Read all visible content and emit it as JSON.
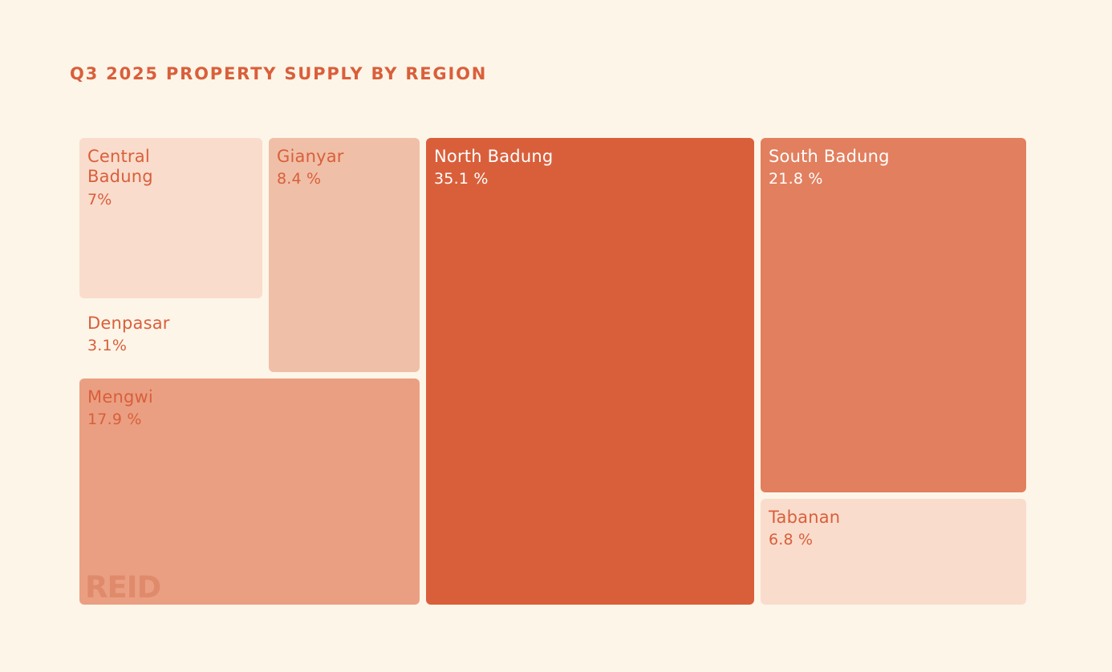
{
  "chart_data": {
    "type": "treemap",
    "title": "Q3 2025 PROPERTY SUPPLY BY REGION",
    "unit": "%",
    "items": [
      {
        "name": "Central Badung",
        "value": 7,
        "value_label": "7%",
        "color": "#f9dccc",
        "text_color": "#d95f3b"
      },
      {
        "name": "Gianyar",
        "value": 8.4,
        "value_label": "8.4 %",
        "color": "#f0bfa7",
        "text_color": "#d95f3b"
      },
      {
        "name": "North Badung",
        "value": 35.1,
        "value_label": "35.1 %",
        "color": "#d95f3b",
        "text_color": "#ffffff"
      },
      {
        "name": "South Badung",
        "value": 21.8,
        "value_label": "21.8 %",
        "color": "#e27f5e",
        "text_color": "#ffffff"
      },
      {
        "name": "Denpasar",
        "value": 3.1,
        "value_label": "3.1%",
        "color": "#fdf5e8",
        "text_color": "#d95f3b"
      },
      {
        "name": "Mengwi",
        "value": 17.9,
        "value_label": "17.9 %",
        "color": "#ea9f82",
        "text_color": "#d95f3b"
      },
      {
        "name": "Tabanan",
        "value": 6.8,
        "value_label": "6.8 %",
        "color": "#f9dccc",
        "text_color": "#d95f3b"
      }
    ]
  },
  "watermark": {
    "text": "REID"
  }
}
